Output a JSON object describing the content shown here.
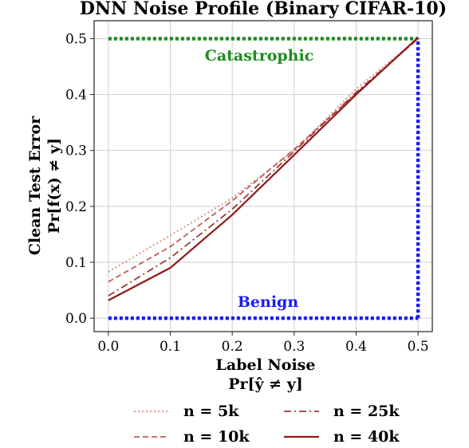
{
  "chart_data": {
    "type": "line",
    "title": "DNN Noise Profile (Binary CIFAR-10)",
    "xlabel_line1": "Label Noise",
    "xlabel_line2": "Pr[ŷ ≠ y]",
    "ylabel_line1": "Clean Test Error",
    "ylabel_line2": "Pr[f(x) ≠ y]",
    "x": [
      0.0,
      0.1,
      0.2,
      0.3,
      0.4,
      0.5
    ],
    "x_ticks": [
      "0.0",
      "0.1",
      "0.2",
      "0.3",
      "0.4",
      "0.5"
    ],
    "y_ticks": [
      "0.0",
      "0.1",
      "0.2",
      "0.3",
      "0.4",
      "0.5"
    ],
    "xlim": [
      -0.023,
      0.523
    ],
    "ylim": [
      -0.024,
      0.532
    ],
    "grid": true,
    "legend_position": "bottom-center",
    "series": [
      {
        "name": "n = 5k",
        "values": [
          0.083,
          0.148,
          0.215,
          0.3,
          0.41,
          0.5
        ],
        "color": "#d98b82",
        "dash": "dotted"
      },
      {
        "name": "n = 10k",
        "values": [
          0.065,
          0.128,
          0.21,
          0.302,
          0.402,
          0.5
        ],
        "color": "#c05e55",
        "dash": "dashed"
      },
      {
        "name": "n = 25k",
        "values": [
          0.04,
          0.108,
          0.195,
          0.298,
          0.404,
          0.5
        ],
        "color": "#a03a33",
        "dash": "dashdot"
      },
      {
        "name": "n = 40k",
        "values": [
          0.032,
          0.09,
          0.185,
          0.292,
          0.4,
          0.502
        ],
        "color": "#8b1a1a",
        "dash": "solid"
      }
    ],
    "annotations": {
      "catastrophic": {
        "label": "Catastrophic",
        "color": "#1e8c1e",
        "y": 0.5
      },
      "benign": {
        "label": "Benign",
        "color": "#1a1aff",
        "y": 0.0,
        "x_vertical": 0.5
      }
    }
  }
}
